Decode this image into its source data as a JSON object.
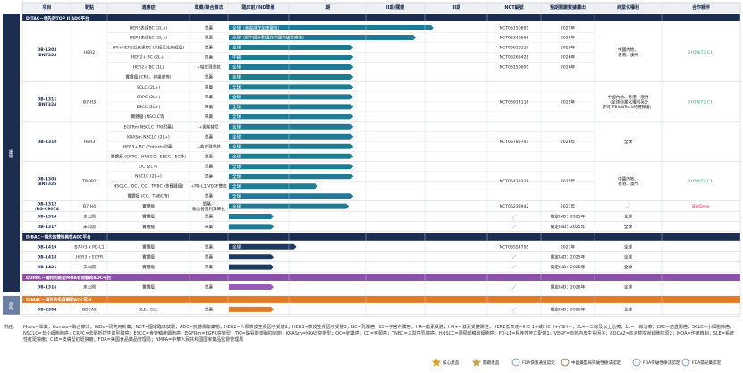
{
  "header": [
    "項目",
    "靶點",
    "適應症",
    "單藥/聯合療法",
    "臨床前/IND準備",
    "I期",
    "II期/關鍵",
    "III期",
    "NCT編號",
    "預期關鍵數據讀出",
    "商業化權利",
    "合作夥伴"
  ],
  "bands": [
    {
      "label": "腫瘤",
      "sections": [
        {
          "title": "DITAC－領先的TOP II ADC平台",
          "color": "#1c2d4f",
          "bar_color": "#1f7b93",
          "drugs": [
            {
              "name": [
                "DB-1303",
                "/BNT323"
              ],
              "target": "HER2",
              "rights": [
                "中國內地、",
                "香港、澳門"
              ],
              "partner": "BIONTECH",
              "rows": [
                {
                  "indication": "HER2表達BC (2L+)",
                  "therapy": "單藥",
                  "bar": "全球（美國潛在加速審批）",
                  "progress": 3.14,
                  "nct": "NCT05150691",
                  "readout": "2025年"
                },
                {
                  "indication": "HER2表達EC (2L+)",
                  "therapy": "單藥",
                  "bar": "全球（於中國計劃遞交中國突破性療法）",
                  "progress": 2.85,
                  "nct": "NCT06340568",
                  "readout": "2026年"
                },
                {
                  "indication": "HR+HER2低表達BC (未接受化療經歷)",
                  "therapy": "單藥",
                  "bar": "全球",
                  "progress": 1.84,
                  "nct": "NCT06018337",
                  "readout": "2026年"
                },
                {
                  "indication": "HER2+ BC (2L+)",
                  "therapy": "單藥",
                  "bar": "中國",
                  "progress": 1.84,
                  "nct": "NCT06265428",
                  "readout": "2026年"
                },
                {
                  "indication": "HER2+ BC (1L)",
                  "therapy": "+帕妥珠單抗",
                  "bar": "全球",
                  "progress": 1.84,
                  "nct": "NCT05150691",
                  "readout": "2026年"
                },
                {
                  "indication": "實體瘤 (CRC、卵巢癌等)",
                  "therapy": "單藥",
                  "bar": "全球",
                  "progress": 1.84
                }
              ]
            },
            {
              "name": [
                "DB-1311",
                "/BNT324"
              ],
              "target": "B7-H3",
              "nct": "NCT05914116",
              "readout": "2025年",
              "rights": [
                "中國內地、香港、澳門",
                "（全球商業化權利另外",
                "許可予BioNTech的選擇權）"
              ],
              "partner": "BIONTECH",
              "rows": [
                {
                  "indication": "SCLC (2L+)",
                  "therapy": "單藥",
                  "bar": "全球",
                  "progress": 1.84
                },
                {
                  "indication": "CRPC (2L+)",
                  "therapy": "單藥",
                  "bar": "全球",
                  "progress": 1.84
                },
                {
                  "indication": "ESCC (2L+)",
                  "therapy": "單藥",
                  "bar": "全球",
                  "progress": 1.84
                },
                {
                  "indication": "實體瘤 (NSCLC等)",
                  "therapy": "單藥",
                  "bar": "全球",
                  "progress": 1.84
                }
              ]
            },
            {
              "name": [
                "DB-1310"
              ],
              "target": "HER3",
              "nct": "NCT05785741",
              "readout": "2026年",
              "rights": [
                "全球"
              ],
              "rows": [
                {
                  "indication": "EGFRm NSCLC (TKI耐藥)",
                  "therapy": "+奧希替尼",
                  "bar": "全球",
                  "progress": 1.84
                },
                {
                  "indication": "KRASm NSCLC (2L+)",
                  "therapy": "單藥",
                  "bar": "全球",
                  "progress": 1.84
                },
                {
                  "indication": "HER3+ BC (Enhertu耐藥)",
                  "therapy": "+曲妥珠單抗",
                  "bar": "全球",
                  "progress": 1.84
                },
                {
                  "indication": "實體瘤 (CRPC、HNSCC、ESCC、EC等)",
                  "therapy": "單藥",
                  "bar": "全球",
                  "progress": 1.84
                }
              ]
            },
            {
              "name": [
                "DB-1305",
                "/BNT325"
              ],
              "target": "TROP2",
              "nct": "NCT05438329",
              "readout": "2025年",
              "rights": [
                "中國內地、",
                "香港、澳門"
              ],
              "partner": "BIONTECH",
              "rows": [
                {
                  "indication": "OC (2L+)",
                  "therapy": "單藥",
                  "bar": "全球",
                  "progress": 1.84
                },
                {
                  "indication": "NSCLC (2L+)",
                  "therapy": "單藥",
                  "bar": "全球",
                  "progress": 1.84
                },
                {
                  "indication": "NSCLC、OC、CC、TNBC (多種腫瘤)",
                  "therapy": "+PD-L1/VEGF雙抗",
                  "bar": "全球",
                  "progress": 1.37
                },
                {
                  "indication": "實體瘤 (CC、TNBC等)",
                  "therapy": "單藥",
                  "bar": "全球",
                  "progress": 1.84
                }
              ]
            },
            {
              "name": [
                "DB-1312",
                "/BG-C9074"
              ],
              "target": "B7-H4",
              "nct": "NCT06233942",
              "readout": "2027年",
              "rights": [
                "／"
              ],
              "partner": "BeiGene",
              "rows": [
                {
                  "indication": "實體瘤",
                  "therapy": [
                    "單藥／",
                    "聯合替雷利珠單抗"
                  ],
                  "bar": "全球",
                  "progress": 1.78
                }
              ]
            },
            {
              "name": [
                "DB-1314"
              ],
              "target": "未公開",
              "nct": "／",
              "readout": "擬定IND：2025年",
              "rights": [
                "全球"
              ],
              "rows": [
                {
                  "indication": "實體瘤",
                  "therapy": "單藥",
                  "progress": 0.75
                }
              ]
            },
            {
              "name": [
                "DB-1317"
              ],
              "target": "未公開",
              "nct": "／",
              "readout": "擬定IND：2025年",
              "rights": [
                "全球"
              ],
              "rows": [
                {
                  "indication": "實體瘤",
                  "therapy": "單藥",
                  "progress": 0.75
                }
              ]
            }
          ]
        },
        {
          "title": "DIBAC－領先的雙特異性ADC平台",
          "color": "#1c2d4f",
          "bar_color": "#1f3a60",
          "drugs": [
            {
              "name": [
                "DB-1419"
              ],
              "target": "B7-H3 x PD-L1",
              "nct": "NCT06554795",
              "readout": "2027年",
              "rights": [
                "全球"
              ],
              "rows": [
                {
                  "indication": "實體瘤",
                  "therapy": "單藥",
                  "bar": "全球",
                  "progress": 1.1
                }
              ]
            },
            {
              "name": [
                "DB-1418"
              ],
              "target": "HER3 x EGFR",
              "nct": "／",
              "readout": "擬定IND：2025年",
              "rights": [
                "全球"
              ],
              "rows": [
                {
                  "indication": "實體瘤",
                  "therapy": "單藥",
                  "progress": 0.75
                }
              ]
            },
            {
              "name": [
                "DB-1421"
              ],
              "target": "未公開",
              "nct": "／",
              "readout": "擬定IND：2025年",
              "rights": [
                "全球"
              ],
              "rows": [
                {
                  "indication": "實體瘤",
                  "therapy": "單藥",
                  "progress": 0.75
                }
              ]
            }
          ]
        },
        {
          "title": "DUPAC－獨特的新型MOA有效載荷ADC平台",
          "color": "#8e4fa8",
          "bar_color": "#9b5bb8",
          "drugs": [
            {
              "name": [
                "DB-1316"
              ],
              "target": "未公開",
              "nct": "／",
              "readout": "擬定IND：2026年",
              "rights": [
                "全球"
              ],
              "rows": [
                {
                  "indication": "實體瘤",
                  "therapy": "單藥",
                  "progress": 0.75
                }
              ]
            }
          ]
        }
      ]
    },
    {
      "label": "自免",
      "sections": [
        {
          "title": "DIMAC－領先的免疫調節ADC平台",
          "color": "#e07b2a",
          "bar_color": "#e07b2a",
          "drugs": [
            {
              "name": [
                "DB-2304"
              ],
              "target": "BDCA2",
              "nct": "／",
              "readout": "擬定IND：2026年",
              "rights": [
                "全球"
              ],
              "rows": [
                {
                  "indication": "SLE、CLE",
                  "therapy": "單藥",
                  "progress": 0.75
                }
              ]
            }
          ]
        }
      ]
    }
  ],
  "note_label": "附註：",
  "note": "Mono=單藥；Combo=聯合療法；INDs=研究用新藥；NCT=國家臨床試驗；ADC=抗體偶聯藥物；HER2=人類表皮生長因子受體2；HER3=表皮生長因子受體3；BC=乳腺癌；EC=子宮內膜癌；HR=激素受體；HR+=激素受體陽性；HER2低表達=IHC 1+或IHC 2+/ISH－；2L+=二線及以上治療；1L=一線治療；CRC=結直腸癌；SCLC=小細胞肺癌；NSCLC=非小細胞肺癌；CRPC=去勢抵抗性前列腺癌；ESCC=食管鱗狀細胞癌；EGFRm=EGFR突變型；TKI=酪氨酸激酶抑制劑；KRASm=KRAS突變型；OC=卵巢癌；CC=宮頸癌；TNBC=三陰性乳腺癌；HNSCC=頭頸部鱗狀細胞癌；PD-L1=程序性死亡配體1；VEGF=血管內皮生長因子；BDCA2=血液樹突狀細胞抗原2；MOA=作用機制；SLE=系統性紅斑狼瘡；CLE=皮膚型紅斑狼瘡；FDA=美國食品藥品管理局；NMPA=中華人民共和國國家藥品監督管理局",
  "legend": [
    "核心產品",
    "關鍵產品",
    "FDA快速通道認定",
    "中國藥監局突破性療法認定",
    "FDA突破性療法認定",
    "FDA孤兒藥認定"
  ]
}
